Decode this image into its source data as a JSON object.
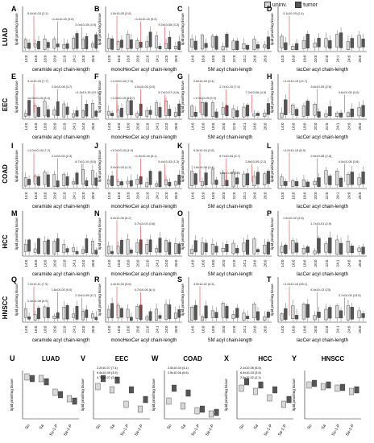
{
  "legend": {
    "uninv": "uninv.",
    "tumor": "tumor",
    "uninv_color": "#d8d8d8",
    "tumor_color": "#555555"
  },
  "colors": {
    "sig": "#d62728",
    "box": "#333333"
  },
  "row_labels": [
    "LUAD",
    "EEC",
    "COAD",
    "HCC",
    "HNSCC"
  ],
  "ylabel": "lipid pmol/mg tissue",
  "column_xlabels": [
    "ceramide acyl chain-length",
    "monoHexCer acyl chain-length",
    "SM acyl chain-length",
    "lacCer acyl chain-length"
  ],
  "chain_ticks": [
    "14:0",
    "16:0",
    "18:0",
    "20:0",
    "22:0",
    "24:1",
    "24:0",
    "26:0"
  ],
  "chart_data": [
    {
      "panel": "A",
      "type": "box",
      "row": 0,
      "col": 0,
      "annotations": [
        "5.0x10-03 (2.1)",
        "<1.0x10-15 (3.6)",
        "2.0x10-15 (4.9)"
      ]
    },
    {
      "panel": "B",
      "type": "box",
      "row": 0,
      "col": 1,
      "annotations": [
        "1.5x10-05 (2.6)",
        "<1.0x10-15 (6.2)",
        "9.2x10-08 (3.3)"
      ]
    },
    {
      "panel": "C",
      "type": "box",
      "row": 0,
      "col": 2,
      "annotations": []
    },
    {
      "panel": "D",
      "type": "box",
      "row": 0,
      "col": 3,
      "annotations": [
        "3.1x10-03 (2.4)"
      ]
    },
    {
      "panel": "E",
      "type": "box",
      "row": 1,
      "col": 0,
      "annotations": [
        "3.1x10-03 (7.7)",
        "2.3x10-08 (3.7)",
        "<1.0x10-15 (13.1)",
        "<1.0x10-15 (8.4)"
      ]
    },
    {
      "panel": "F",
      "type": "box",
      "row": 1,
      "col": 1,
      "annotations": [
        "<1.0x10-15 (7.6)",
        "4.0x10-05 (3.0)",
        "5.7x10-07 (4.6)",
        "<1.0x10-15 (12.7)"
      ]
    },
    {
      "panel": "G",
      "type": "box",
      "row": 1,
      "col": 2,
      "annotations": [
        "2.6x10-04 (3.4)",
        "2.7x10-10 (7.4)",
        "7.2x10-06 (4.9)",
        "<1.0x10-15 (9.0)"
      ]
    },
    {
      "panel": "H",
      "type": "box",
      "row": 1,
      "col": 3,
      "annotations": [
        "<1.0x10-15 (12.7)",
        "3.6x10-05 (2.5)",
        "3.6x10-05 (3.0)"
      ]
    },
    {
      "panel": "I",
      "type": "box",
      "row": 2,
      "col": 0,
      "annotations": [
        "<1.0x10-15 (7.2)",
        "2.1x10-09 (2.3)",
        "8.7x10-10 (8.5)"
      ]
    },
    {
      "panel": "J",
      "type": "box",
      "row": 2,
      "col": 1,
      "annotations": [
        "<1.0x10-15 (4.9)",
        "<1.0x10-15 (6.1)",
        "5.4x10-03 (1.3)",
        "3.0x10-03 (1.3)"
      ]
    },
    {
      "panel": "K",
      "type": "box",
      "row": 2,
      "col": 2,
      "annotations": [
        "9.3x10-04 (2.8)",
        "6.7x10-04 (3.7)",
        "2.8x10-05 (2.2)",
        "1.6x10-05 (3.4)",
        "1.6x10-06 (3.5)"
      ]
    },
    {
      "panel": "L",
      "type": "box",
      "row": 2,
      "col": 3,
      "annotations": [
        "<1.0x10-15 (6.9)",
        "2.6x10-08 (2.3)",
        "4.0x10-08 (3.8)"
      ]
    },
    {
      "panel": "M",
      "type": "box",
      "row": 3,
      "col": 0,
      "annotations": []
    },
    {
      "panel": "N",
      "type": "box",
      "row": 3,
      "col": 1,
      "annotations": [
        "4.3x10-06 (6.2)",
        "3.7x10-03 (2.6)"
      ]
    },
    {
      "panel": "O",
      "type": "box",
      "row": 3,
      "col": 2,
      "annotations": []
    },
    {
      "panel": "P",
      "type": "box",
      "row": 3,
      "col": 3,
      "annotations": [
        "1.9x10-02 (2.6)",
        "1.7x10-01 (2.5)"
      ]
    },
    {
      "panel": "Q",
      "type": "box",
      "row": 4,
      "col": 0,
      "annotations": [
        "7.0x10-11 (7.9)",
        "1.6x10-05 (5.0)",
        "2.3x10-09 (6.7)",
        "2.4x10-08 (6.5)"
      ]
    },
    {
      "panel": "R",
      "type": "box",
      "row": 4,
      "col": 1,
      "annotations": [
        "1.4x10-03 (5.6)",
        "4.7x10-06 (6.1)"
      ]
    },
    {
      "panel": "S",
      "type": "box",
      "row": 4,
      "col": 2,
      "annotations": [
        "4.9x10-02 (6.3)"
      ]
    },
    {
      "panel": "T",
      "type": "box",
      "row": 4,
      "col": 3,
      "annotations": [
        "<1.0x10-15 (28.1)",
        "6.3x10-13 (23)",
        "3.7x10-05 (13.5)"
      ]
    },
    {
      "panel": "U",
      "type": "box",
      "title": "LUAD",
      "categories": [
        "So",
        "Sa",
        "So-1-P",
        "Sa-1-P"
      ],
      "annotations": [],
      "series": [
        {
          "name": "uninv.",
          "values": [
            5.2,
            5.0,
            3.3,
            2.5
          ]
        },
        {
          "name": "tumor",
          "values": [
            5.0,
            4.6,
            3.0,
            2.2
          ]
        }
      ]
    },
    {
      "panel": "V",
      "type": "box",
      "title": "EEC",
      "categories": [
        "So",
        "Sa",
        "So-1-P",
        "Sa-1-P"
      ],
      "annotations": [
        "2.2x10-07 (7.4)",
        "9.4x10-05 (3.9)",
        "4.7x10-07 (3.4)"
      ],
      "series": [
        {
          "name": "uninv.",
          "values": [
            4.0,
            3.6,
            1.8,
            1.2
          ]
        },
        {
          "name": "tumor",
          "values": [
            5.0,
            4.8,
            3.6,
            2.4
          ]
        }
      ]
    },
    {
      "panel": "W",
      "type": "box",
      "title": "COAD",
      "categories": [
        "So",
        "Sa",
        "So-1-P",
        "Sa-1-P"
      ],
      "annotations": [
        "2.5x10-04 (4.1)",
        "2.5x10-06 (6.6)"
      ],
      "series": [
        {
          "name": "uninv.",
          "values": [
            2.2,
            1.6,
            1.0,
            0.6
          ]
        },
        {
          "name": "tumor",
          "values": [
            3.8,
            3.2,
            1.2,
            0.8
          ]
        }
      ]
    },
    {
      "panel": "X",
      "type": "box",
      "title": "HCC",
      "categories": [
        "So",
        "Sa",
        "So-1-P",
        "Sa-1-P"
      ],
      "annotations": [
        "2.1x10-06 (5.5)",
        "6.9x10-03 (3.9)",
        "2.6x10-02 (2.1)"
      ],
      "series": [
        {
          "name": "uninv.",
          "values": [
            3.8,
            3.4,
            2.6,
            1.8
          ]
        },
        {
          "name": "tumor",
          "values": [
            4.6,
            4.2,
            3.6,
            2.4
          ]
        }
      ]
    },
    {
      "panel": "Y",
      "type": "box",
      "title": "HNSCC",
      "categories": [
        "So",
        "Sa",
        "So-1-P",
        "Sa-1-P"
      ],
      "annotations": [],
      "series": [
        {
          "name": "uninv.",
          "values": [
            4.2,
            4.0,
            3.8,
            3.4
          ]
        },
        {
          "name": "tumor",
          "values": [
            4.4,
            4.2,
            3.9,
            3.6
          ]
        }
      ]
    }
  ]
}
